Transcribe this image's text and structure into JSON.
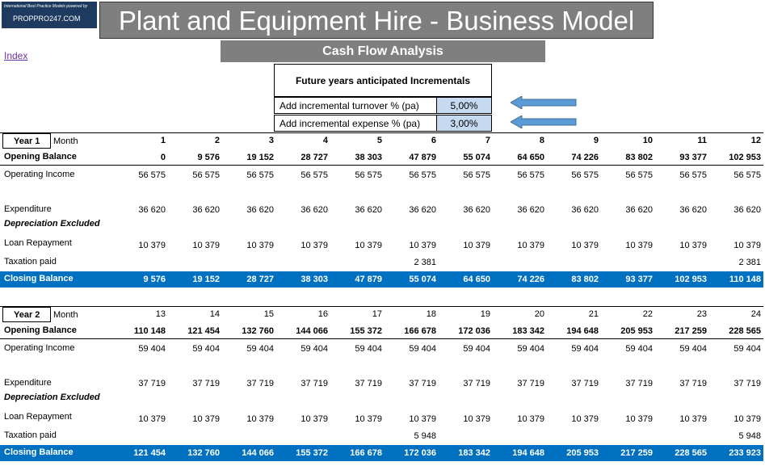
{
  "logo": {
    "tagline": "International Best Practice Models powered by",
    "site": "PROPPRO247.COM"
  },
  "title": "Plant and Equipment Hire - Business Model",
  "subtitle": "Cash Flow Analysis",
  "index_link": "Index",
  "incrementals": {
    "header": "Future years anticipated Incrementals",
    "turnover_label": "Add incremental turnover % (pa)",
    "turnover_value": "5,00%",
    "expense_label": "Add incremental expense % (pa)",
    "expense_value": "3,00%"
  },
  "colors": {
    "closing_row": "#0070c0",
    "input_cell": "#c5d9f1",
    "arrow": "#5b9bd5",
    "banner": "#7f7f7f"
  },
  "year1": {
    "year_label": "Year 1",
    "month_label": "Month",
    "months": [
      "1",
      "2",
      "3",
      "4",
      "5",
      "6",
      "7",
      "8",
      "9",
      "10",
      "11",
      "12"
    ],
    "opening_label": "Opening Balance",
    "opening": [
      "0",
      "9 576",
      "19 152",
      "28 727",
      "38 303",
      "47 879",
      "55 074",
      "64 650",
      "74 226",
      "83 802",
      "93 377",
      "102 953"
    ],
    "income_label": "Operating Income",
    "income": [
      "56 575",
      "56 575",
      "56 575",
      "56 575",
      "56 575",
      "56 575",
      "56 575",
      "56 575",
      "56 575",
      "56 575",
      "56 575",
      "56 575"
    ],
    "expenditure_label": "Expenditure",
    "expenditure": [
      "36 620",
      "36 620",
      "36 620",
      "36 620",
      "36 620",
      "36 620",
      "36 620",
      "36 620",
      "36 620",
      "36 620",
      "36 620",
      "36 620"
    ],
    "depreciation_label": "Depreciation Excluded",
    "loan_label": "Loan Repayment",
    "loan": [
      "10 379",
      "10 379",
      "10 379",
      "10 379",
      "10 379",
      "10 379",
      "10 379",
      "10 379",
      "10 379",
      "10 379",
      "10 379",
      "10 379"
    ],
    "tax_label": "Taxation paid",
    "tax": [
      "",
      "",
      "",
      "",
      "",
      "2 381",
      "",
      "",
      "",
      "",
      "",
      "2 381"
    ],
    "closing_label": "Closing Balance",
    "closing": [
      "9 576",
      "19 152",
      "28 727",
      "38 303",
      "47 879",
      "55 074",
      "64 650",
      "74 226",
      "83 802",
      "93 377",
      "102 953",
      "110 148"
    ]
  },
  "year2": {
    "year_label": "Year 2",
    "month_label": "Month",
    "months": [
      "13",
      "14",
      "15",
      "16",
      "17",
      "18",
      "19",
      "20",
      "21",
      "22",
      "23",
      "24"
    ],
    "opening_label": "Opening Balance",
    "opening": [
      "110 148",
      "121 454",
      "132 760",
      "144 066",
      "155 372",
      "166 678",
      "172 036",
      "183 342",
      "194 648",
      "205 953",
      "217 259",
      "228 565"
    ],
    "income_label": "Operating Income",
    "income": [
      "59 404",
      "59 404",
      "59 404",
      "59 404",
      "59 404",
      "59 404",
      "59 404",
      "59 404",
      "59 404",
      "59 404",
      "59 404",
      "59 404"
    ],
    "expenditure_label": "Expenditure",
    "expenditure": [
      "37 719",
      "37 719",
      "37 719",
      "37 719",
      "37 719",
      "37 719",
      "37 719",
      "37 719",
      "37 719",
      "37 719",
      "37 719",
      "37 719"
    ],
    "depreciation_label": "Depreciation Excluded",
    "loan_label": "Loan Repayment",
    "loan": [
      "10 379",
      "10 379",
      "10 379",
      "10 379",
      "10 379",
      "10 379",
      "10 379",
      "10 379",
      "10 379",
      "10 379",
      "10 379",
      "10 379"
    ],
    "tax_label": "Taxation paid",
    "tax": [
      "",
      "",
      "",
      "",
      "",
      "5 948",
      "",
      "",
      "",
      "",
      "",
      "5 948"
    ],
    "closing_label": "Closing Balance",
    "closing": [
      "121 454",
      "132 760",
      "144 066",
      "155 372",
      "166 678",
      "172 036",
      "183 342",
      "194 648",
      "205 953",
      "217 259",
      "228 565",
      "233 923"
    ]
  }
}
